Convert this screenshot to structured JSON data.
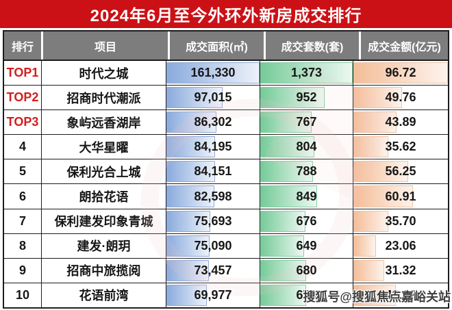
{
  "title": {
    "text": "2024年6月至今外环外新房成交排行"
  },
  "table": {
    "headers": [
      {
        "label": "排行"
      },
      {
        "label": "项目"
      },
      {
        "label": "成交面积(㎡)"
      },
      {
        "label": "成交套数(套)"
      },
      {
        "label": "成交金额(亿元)"
      }
    ],
    "max": {
      "area": 161330,
      "units": 1373,
      "amount": 96.72
    },
    "rows": [
      {
        "rank": "TOP1",
        "rank_highlight": true,
        "project": "时代之城",
        "area_text": "161,330",
        "area_value": 161330,
        "units_text": "1,373",
        "units_value": 1373,
        "amount_text": "96.72",
        "amount_value": 96.72
      },
      {
        "rank": "TOP2",
        "rank_highlight": true,
        "project": "招商时代潮派",
        "area_text": "97,015",
        "area_value": 97015,
        "units_text": "952",
        "units_value": 952,
        "amount_text": "49.76",
        "amount_value": 49.76
      },
      {
        "rank": "TOP3",
        "rank_highlight": true,
        "project": "象屿远香湖岸",
        "area_text": "86,302",
        "area_value": 86302,
        "units_text": "767",
        "units_value": 767,
        "amount_text": "43.89",
        "amount_value": 43.89
      },
      {
        "rank": "4",
        "rank_highlight": false,
        "project": "大华星曜",
        "area_text": "84,195",
        "area_value": 84195,
        "units_text": "804",
        "units_value": 804,
        "amount_text": "35.62",
        "amount_value": 35.62
      },
      {
        "rank": "5",
        "rank_highlight": false,
        "project": "保利光合上城",
        "area_text": "84,151",
        "area_value": 84151,
        "units_text": "788",
        "units_value": 788,
        "amount_text": "56.25",
        "amount_value": 56.25
      },
      {
        "rank": "6",
        "rank_highlight": false,
        "project": "朗拾花语",
        "area_text": "82,598",
        "area_value": 82598,
        "units_text": "849",
        "units_value": 849,
        "amount_text": "60.91",
        "amount_value": 60.91
      },
      {
        "rank": "7",
        "rank_highlight": false,
        "project": "保利建发印象青城",
        "area_text": "75,693",
        "area_value": 75693,
        "units_text": "676",
        "units_value": 676,
        "amount_text": "35.70",
        "amount_value": 35.7
      },
      {
        "rank": "8",
        "rank_highlight": false,
        "project": "建发·朗玥",
        "area_text": "75,090",
        "area_value": 75090,
        "units_text": "649",
        "units_value": 649,
        "amount_text": "23.06",
        "amount_value": 23.06
      },
      {
        "rank": "9",
        "rank_highlight": false,
        "project": "招商中旅揽阅",
        "area_text": "73,457",
        "area_value": 73457,
        "units_text": "680",
        "units_value": 680,
        "amount_text": "31.32",
        "amount_value": 31.32
      },
      {
        "rank": "10",
        "rank_highlight": false,
        "project": "花语前湾",
        "area_text": "69,977",
        "area_value": 69977,
        "units_text": "679",
        "units_value": 679,
        "amount_text": "43.32",
        "amount_value": 43.32
      }
    ]
  },
  "watermark": {
    "text": "搜狐号@搜狐焦点嘉峪关站"
  },
  "colors": {
    "title_bg": "#cb1116",
    "header_bg": "#7d7d7d",
    "rank_red": "#d41d1d",
    "bar_area_from": "#8aabdd",
    "bar_area_to": "#edf2fa",
    "bar_area_border": "#8fa9d8",
    "bar_units_from": "#76cb99",
    "bar_units_to": "#ecf8f1",
    "bar_units_border": "#83cfa2",
    "bar_amount_from": "#f4bd98",
    "bar_amount_to": "#fdf3ec",
    "bar_amount_border": "#f0c3a3"
  },
  "chart_data": {
    "type": "table",
    "title": "2024年6月至今外环外新房成交排行",
    "columns": [
      "排行",
      "项目",
      "成交面积(㎡)",
      "成交套数(套)",
      "成交金额(亿元)"
    ],
    "rows": [
      [
        "TOP1",
        "时代之城",
        161330,
        1373,
        96.72
      ],
      [
        "TOP2",
        "招商时代潮派",
        97015,
        952,
        49.76
      ],
      [
        "TOP3",
        "象屿远香湖岸",
        86302,
        767,
        43.89
      ],
      [
        "4",
        "大华星曜",
        84195,
        804,
        35.62
      ],
      [
        "5",
        "保利光合上城",
        84151,
        788,
        56.25
      ],
      [
        "6",
        "朗拾花语",
        82598,
        849,
        60.91
      ],
      [
        "7",
        "保利建发印象青城",
        75693,
        676,
        35.7
      ],
      [
        "8",
        "建发·朗玥",
        75090,
        649,
        23.06
      ],
      [
        "9",
        "招商中旅揽阅",
        73457,
        680,
        31.32
      ],
      [
        "10",
        "花语前湾",
        69977,
        679,
        43.32
      ]
    ],
    "data_bars": {
      "成交面积(㎡)": "blue",
      "成交套数(套)": "green",
      "成交金额(亿元)": "orange"
    },
    "bar_scaling": "proportional-to-column-max",
    "column_max": {
      "成交面积(㎡)": 161330,
      "成交套数(套)": 1373,
      "成交金额(亿元)": 96.72
    },
    "notes_visible_on_screen": "row 10 成交金额 value partially obscured by watermark"
  }
}
